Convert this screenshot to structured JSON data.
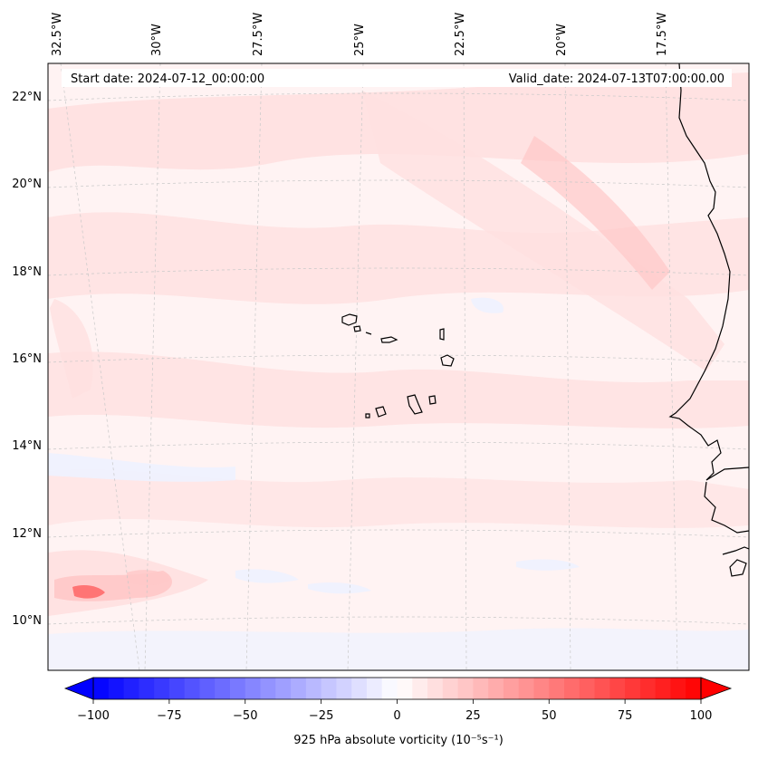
{
  "map": {
    "start_date_label": "Start date: 2024-07-12_00:00:00",
    "valid_date_label": "Valid_date: 2024-07-13T07:00:00.00",
    "lon_labels": [
      "32.5°W",
      "30°W",
      "27.5°W",
      "25°W",
      "22.5°W",
      "20°W",
      "17.5°W"
    ],
    "lat_labels": [
      "22°N",
      "20°N",
      "18°N",
      "16°N",
      "14°N",
      "12°N",
      "10°N"
    ],
    "field_colors": {
      "background_weak_positive": "#fff3f3",
      "weak_positive": "#ffe0e0",
      "moderate_positive": "#ffc8c8",
      "strong_positive": "#ff6a6a",
      "weak_negative": "#eef2ff"
    },
    "coastline_color": "#000000",
    "gridline_color": "#c8c8c8"
  },
  "colorbar": {
    "label": "925 hPa absolute vorticity (10⁻⁵s⁻¹)",
    "tick_labels": [
      "−100",
      "−75",
      "−50",
      "−25",
      "0",
      "25",
      "50",
      "75",
      "100"
    ],
    "min": -100,
    "max": 100,
    "min_color": "#0000ff",
    "mid_color": "#ffffff",
    "max_color": "#ff0000"
  }
}
